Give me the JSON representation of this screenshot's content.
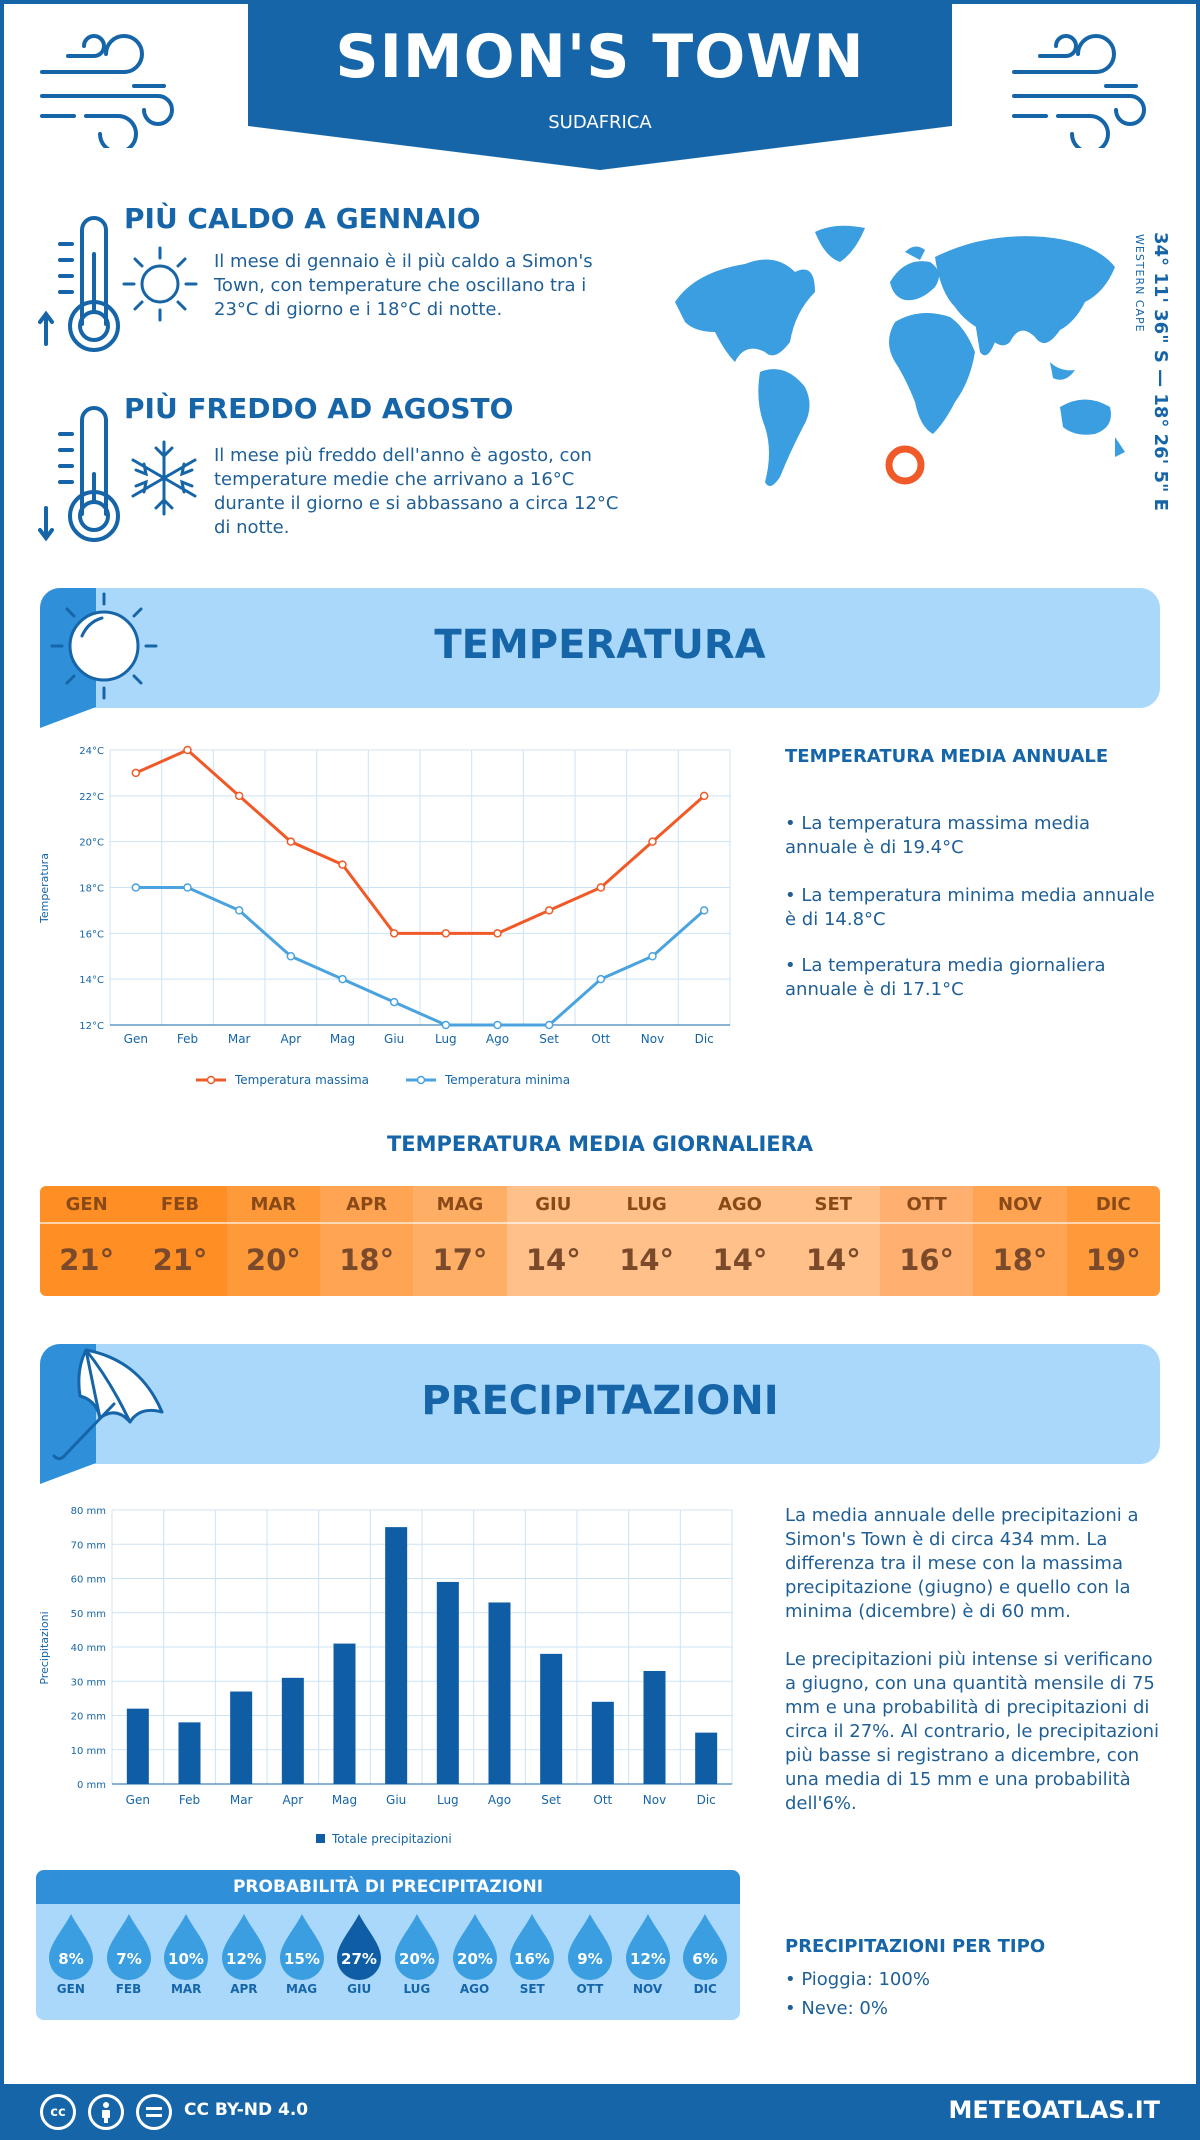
{
  "header": {
    "title": "SIMON'S TOWN",
    "subtitle": "SUDAFRICA"
  },
  "hottest": {
    "heading": "PIÙ CALDO A GENNAIO",
    "text": "Il mese di gennaio è il più caldo a Simon's Town, con temperature che oscillano tra i 23°C di giorno e i 18°C di notte."
  },
  "coldest": {
    "heading": "PIÙ FREDDO AD AGOSTO",
    "text": "Il mese più freddo dell'anno è agosto, con temperature medie che arrivano a 16°C durante il giorno e si abbassano a circa 12°C di notte."
  },
  "location": {
    "coordinates": "34° 11' 36\" S — 18° 26' 5\" E",
    "region": "WESTERN CAPE"
  },
  "temperature_section": {
    "title": "TEMPERATURA",
    "annual_heading": "TEMPERATURA MEDIA ANNUALE",
    "bullets": [
      "• La temperatura massima media annuale è di 19.4°C",
      "• La temperatura minima media annuale è di 14.8°C",
      "• La temperatura media giornaliera annuale è di 17.1°C"
    ]
  },
  "daily_section": {
    "title": "TEMPERATURA MEDIA GIORNALIERA",
    "months": [
      "GEN",
      "FEB",
      "MAR",
      "APR",
      "MAG",
      "GIU",
      "LUG",
      "AGO",
      "SET",
      "OTT",
      "NOV",
      "DIC"
    ],
    "values": [
      "21°",
      "21°",
      "20°",
      "18°",
      "17°",
      "14°",
      "14°",
      "14°",
      "14°",
      "16°",
      "18°",
      "19°"
    ],
    "colors": [
      "#ff8e24",
      "#ff8e24",
      "#ff9a3a",
      "#ffa452",
      "#ffae66",
      "#ffc08a",
      "#ffc08a",
      "#ffc08a",
      "#ffc08a",
      "#ffb070",
      "#ffa452",
      "#ff9a3a"
    ]
  },
  "precip_section": {
    "title": "PRECIPITAZIONI",
    "text1": "La media annuale delle precipitazioni a Simon's Town è di circa 434 mm. La differenza tra il mese con la massima precipitazione (giugno) e quello con la minima (dicembre) è di 60 mm.",
    "text2": "Le precipitazioni più intense si verificano a giugno, con una quantità mensile di 75 mm e una probabilità di precipitazioni di circa il 27%. Al contrario, le precipitazioni più basse si registrano a dicembre, con una media di 15 mm e una probabilità dell'6%.",
    "type_heading": "PRECIPITAZIONI PER TIPO",
    "type_rain": "• Pioggia: 100%",
    "type_snow": "• Neve: 0%"
  },
  "probability": {
    "title": "PROBABILITÀ DI PRECIPITAZIONI",
    "months": [
      "GEN",
      "FEB",
      "MAR",
      "APR",
      "MAG",
      "GIU",
      "LUG",
      "AGO",
      "SET",
      "OTT",
      "NOV",
      "DIC"
    ],
    "values": [
      "8%",
      "7%",
      "10%",
      "12%",
      "15%",
      "27%",
      "20%",
      "20%",
      "16%",
      "9%",
      "12%",
      "6%"
    ],
    "highlight_index": 5
  },
  "footer": {
    "license": "CC BY-ND 4.0",
    "site": "METEOATLAS.IT"
  },
  "colors": {
    "brand": "#1565a8",
    "max_line": "#f05a28",
    "min_line": "#4aa3df",
    "bar": "#0f5ea5",
    "light": "#a9d8fb"
  },
  "chart_data": [
    {
      "type": "line",
      "x": [
        "Gen",
        "Feb",
        "Mar",
        "Apr",
        "Mag",
        "Giu",
        "Lug",
        "Ago",
        "Set",
        "Ott",
        "Nov",
        "Dic"
      ],
      "series": [
        {
          "name": "Temperatura massima",
          "values": [
            23,
            24,
            22,
            20,
            19,
            16,
            16,
            16,
            17,
            18,
            20,
            22
          ]
        },
        {
          "name": "Temperatura minima",
          "values": [
            18,
            18,
            17,
            15,
            14,
            13,
            12,
            12,
            12,
            14,
            15,
            17
          ]
        }
      ],
      "ylabel": "Temperatura",
      "yticks": [
        "12°C",
        "14°C",
        "16°C",
        "18°C",
        "20°C",
        "22°C",
        "24°C"
      ],
      "ylim": [
        12,
        24
      ],
      "grid": true,
      "legend": "bottom"
    },
    {
      "type": "bar",
      "categories": [
        "Gen",
        "Feb",
        "Mar",
        "Apr",
        "Mag",
        "Giu",
        "Lug",
        "Ago",
        "Set",
        "Ott",
        "Nov",
        "Dic"
      ],
      "series": [
        {
          "name": "Totale precipitazioni",
          "values": [
            22,
            18,
            27,
            31,
            41,
            75,
            59,
            53,
            38,
            24,
            33,
            15
          ]
        }
      ],
      "ylabel": "Precipitazioni",
      "yticks": [
        "0 mm",
        "10 mm",
        "20 mm",
        "30 mm",
        "40 mm",
        "50 mm",
        "60 mm",
        "70 mm",
        "80 mm"
      ],
      "ylim": [
        0,
        80
      ],
      "grid": true,
      "legend": "bottom"
    }
  ]
}
